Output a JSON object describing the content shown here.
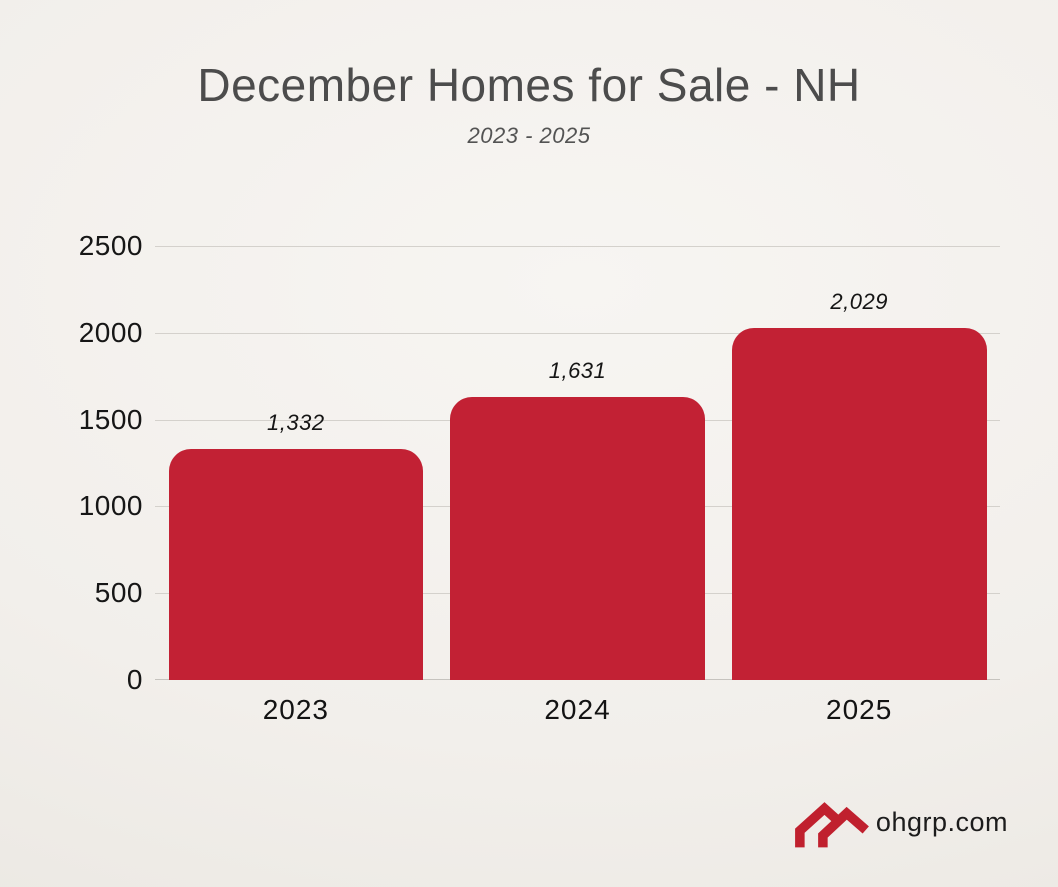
{
  "header": {
    "title": "December Homes for Sale - NH",
    "subtitle": "2023 - 2025"
  },
  "chart_data": {
    "type": "bar",
    "title": "December Homes for Sale - NH",
    "subtitle": "2023 - 2025",
    "categories": [
      "2023",
      "2024",
      "2025"
    ],
    "values": [
      1332,
      1631,
      2029
    ],
    "value_labels": [
      "1,332",
      "1,631",
      "2,029"
    ],
    "ytick_labels": [
      "2500",
      "2000",
      "1500",
      "1000",
      "500",
      "0"
    ],
    "ylim": [
      0,
      2500
    ],
    "ytick_step": 500,
    "grid": true,
    "legend": false,
    "xlabel": "",
    "ylabel": "",
    "bar_color": "#C22134",
    "gridline_color": "#D4D1CC"
  },
  "footer": {
    "brand": "ohgrp.com",
    "logo_icon": "double-roof-icon",
    "logo_color": "#C0202E"
  }
}
